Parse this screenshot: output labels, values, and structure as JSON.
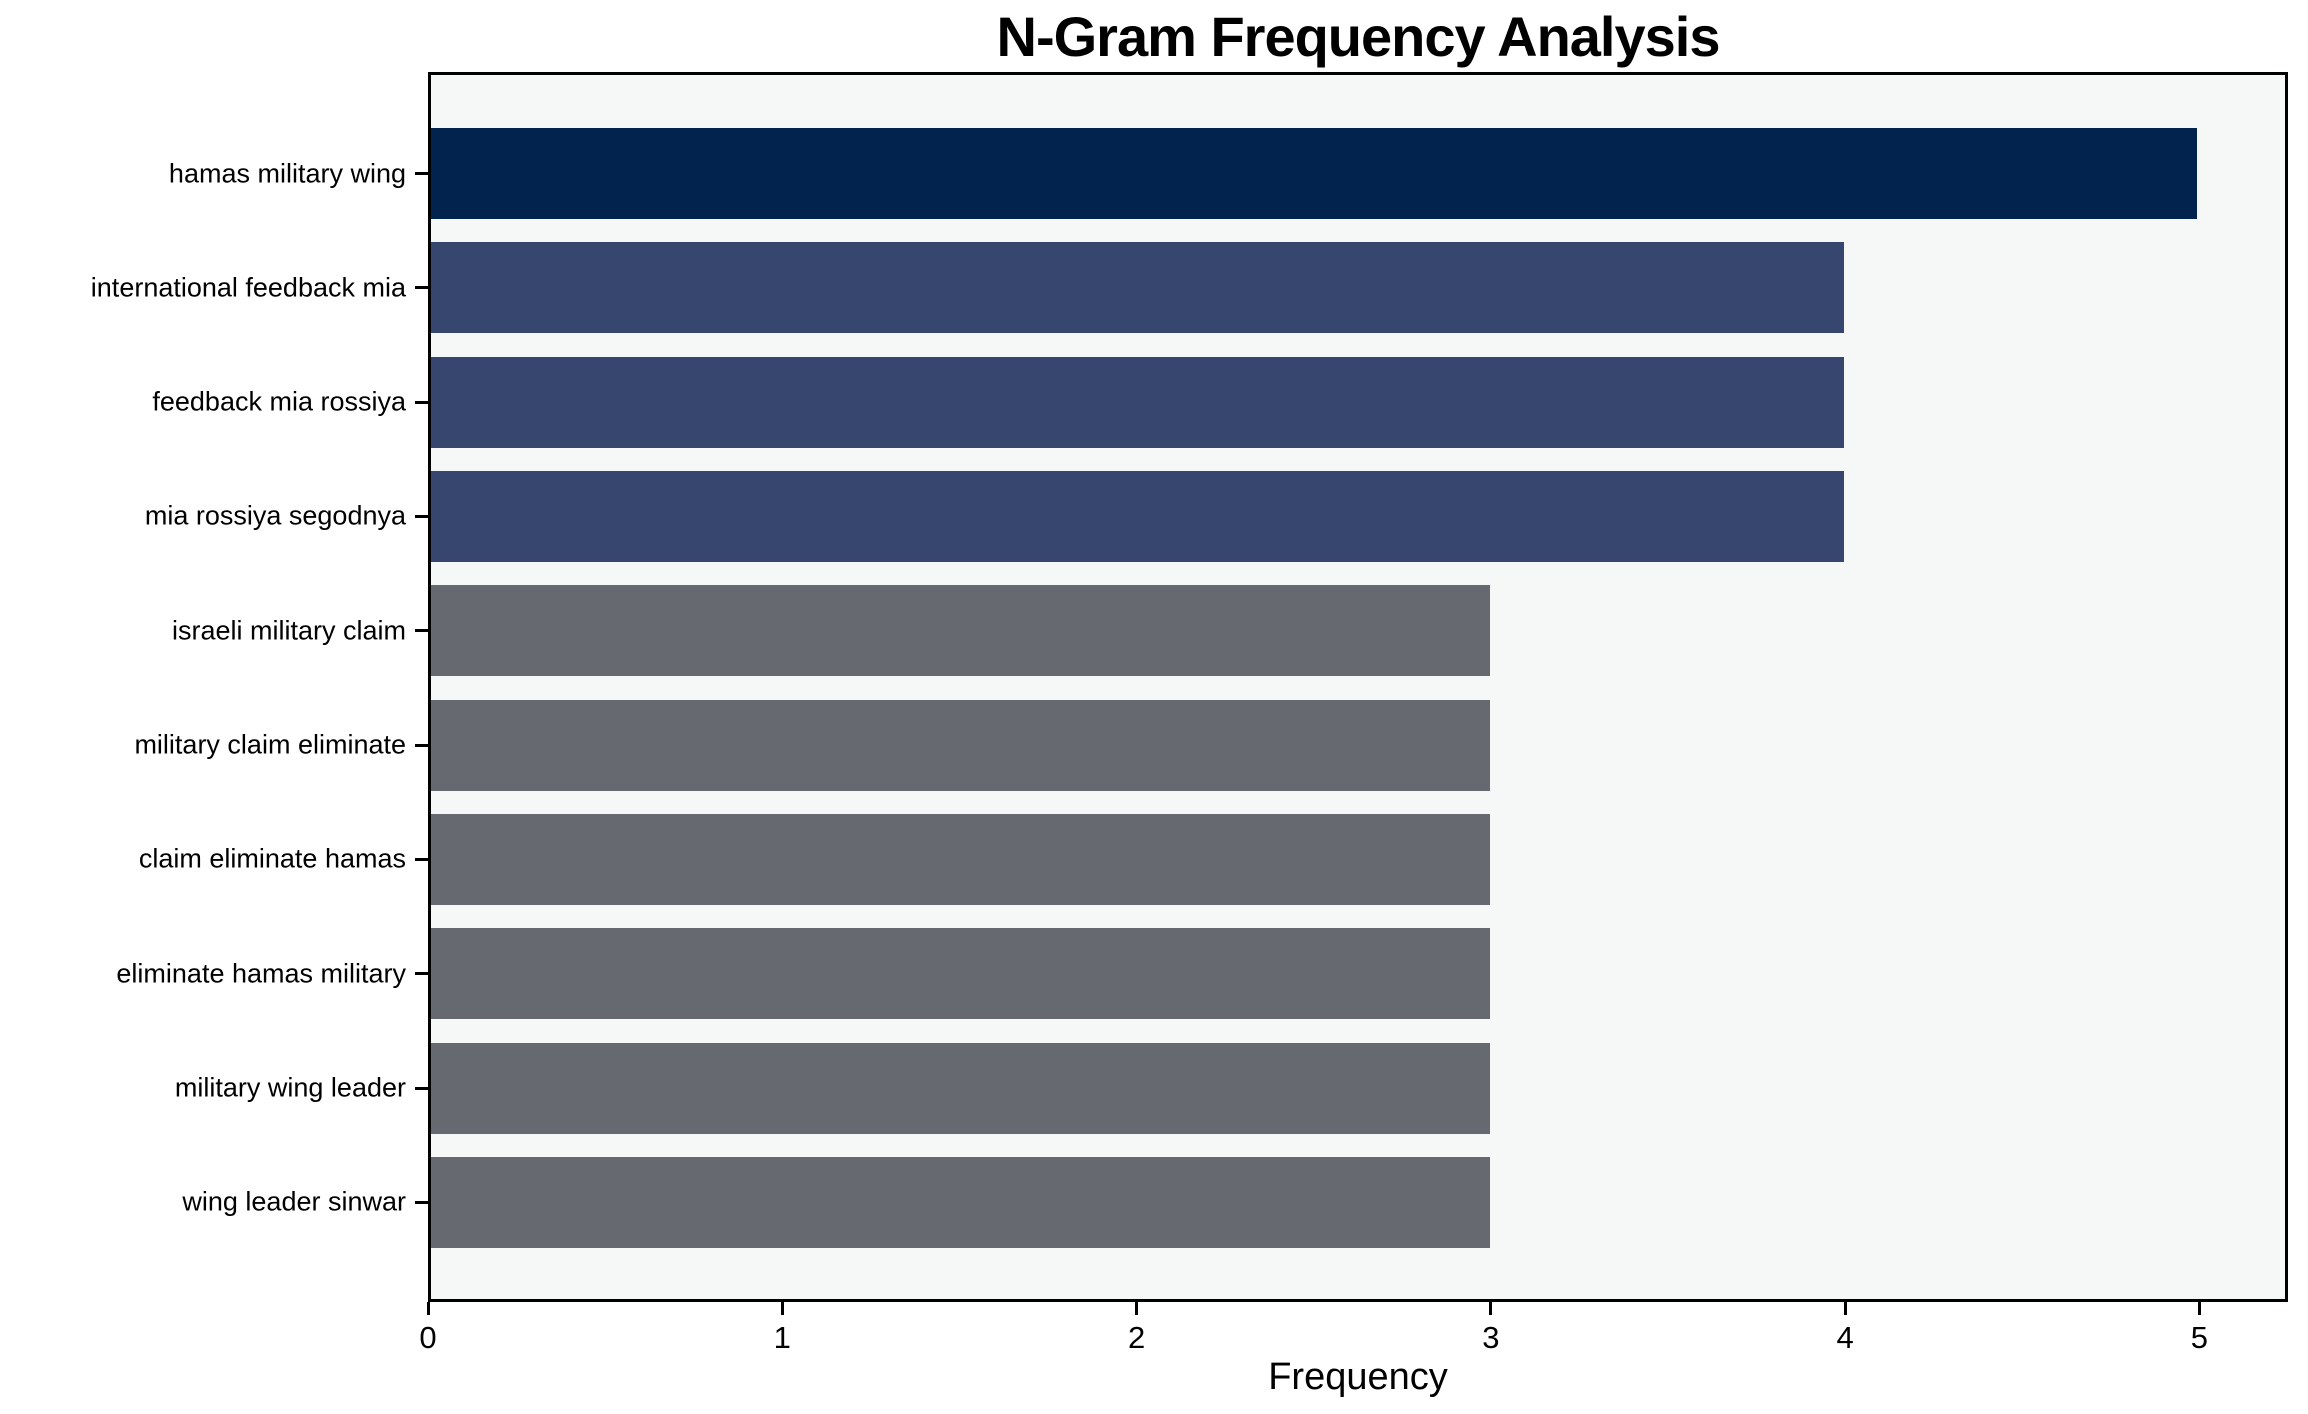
{
  "chart_data": {
    "type": "bar",
    "orientation": "horizontal",
    "title": "N-Gram Frequency Analysis",
    "xlabel": "Frequency",
    "ylabel": "",
    "categories": [
      "hamas military wing",
      "international feedback mia",
      "feedback mia rossiya",
      "mia rossiya segodnya",
      "israeli military claim",
      "military claim eliminate",
      "claim eliminate hamas",
      "eliminate hamas military",
      "military wing leader",
      "wing leader sinwar"
    ],
    "values": [
      5,
      4,
      4,
      4,
      3,
      3,
      3,
      3,
      3,
      3
    ],
    "bar_colors": [
      "#02234e",
      "#36466e",
      "#36466e",
      "#36466e",
      "#66696f",
      "#66696f",
      "#66696f",
      "#66696f",
      "#66696f",
      "#66696f"
    ],
    "xticks": [
      "0",
      "1",
      "2",
      "3",
      "4",
      "5"
    ],
    "xtick_values": [
      0,
      1,
      2,
      3,
      4,
      5
    ],
    "xlim": [
      0,
      5.25
    ],
    "grid": false,
    "legend": null,
    "plot_background": "#f6f7f7",
    "figure_background": "#ffffff",
    "spine_color": "#000000"
  }
}
